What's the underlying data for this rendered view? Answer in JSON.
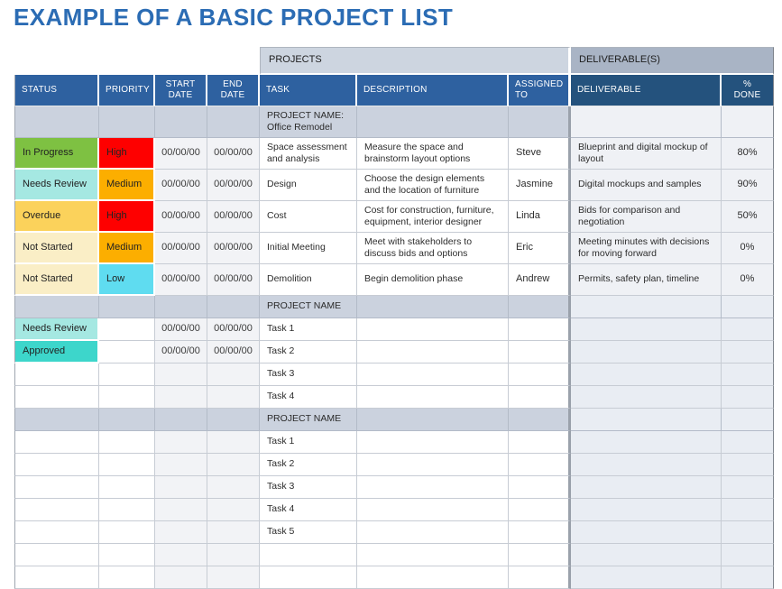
{
  "page_title": "EXAMPLE OF A BASIC PROJECT LIST",
  "colors": {
    "title_blue": "#2B6CB4",
    "header_blue_left": "#2E61A0",
    "header_blue_right": "#24527D",
    "band_projects_bg": "#CDD5E0",
    "band_deliverables_bg": "#A9B4C5",
    "project_name_row_bg": "#CBD2DE",
    "date_cell_bg": "#F2F3F6",
    "deliverable_cell_bg": "#E9EDF3",
    "in_progress": "#7EC142",
    "needs_review": "#A5E8E2",
    "overdue": "#FBD25B",
    "not_started": "#FAEEC6",
    "approved": "#3DD6CB",
    "high": "#FE0000",
    "medium": "#FCAE00",
    "low": "#5FDCF0"
  },
  "table": {
    "bands": [
      {
        "label": "PROJECTS"
      },
      {
        "label": "DELIVERABLE(S)"
      }
    ],
    "columns": [
      {
        "key": "status",
        "label": "STATUS"
      },
      {
        "key": "priority",
        "label": "PRIORITY"
      },
      {
        "key": "start-date",
        "label": "START DATE"
      },
      {
        "key": "end-date",
        "label": "END DATE"
      },
      {
        "key": "task",
        "label": "TASK"
      },
      {
        "key": "description",
        "label": "DESCRIPTION"
      },
      {
        "key": "assigned-to",
        "label": "ASSIGNED TO"
      },
      {
        "key": "deliverable",
        "label": "DELIVERABLE"
      },
      {
        "key": "pct-done",
        "label": "% DONE"
      }
    ],
    "rows": [
      {
        "kind": "project-header",
        "section": 1,
        "cells": [
          "",
          "",
          "",
          "",
          "PROJECT NAME:\nOffice Remodel",
          "",
          "",
          "",
          ""
        ]
      },
      {
        "kind": "task",
        "section": 1,
        "status_color": "in_progress",
        "priority_color": "high",
        "cells": [
          "In Progress",
          "High",
          "00/00/00",
          "00/00/00",
          "Space assessment and analysis",
          "Measure the space and brainstorm layout options",
          "Steve",
          "Blueprint and digital mockup of layout",
          "80%"
        ]
      },
      {
        "kind": "task",
        "section": 1,
        "status_color": "needs_review",
        "priority_color": "medium",
        "cells": [
          "Needs Review",
          "Medium",
          "00/00/00",
          "00/00/00",
          "Design",
          "Choose the design elements and the location of furniture",
          "Jasmine",
          "Digital mockups and samples",
          "90%"
        ]
      },
      {
        "kind": "task",
        "section": 1,
        "status_color": "overdue",
        "priority_color": "high",
        "cells": [
          "Overdue",
          "High",
          "00/00/00",
          "00/00/00",
          "Cost",
          "Cost for construction, furniture, equipment, interior designer",
          "Linda",
          "Bids for comparison and negotiation",
          "50%"
        ]
      },
      {
        "kind": "task",
        "section": 1,
        "status_color": "not_started",
        "priority_color": "medium",
        "cells": [
          "Not Started",
          "Medium",
          "00/00/00",
          "00/00/00",
          "Initial Meeting",
          "Meet with stakeholders to discuss bids and options",
          "Eric",
          "Meeting minutes with decisions for moving forward",
          "0%"
        ]
      },
      {
        "kind": "task",
        "section": 1,
        "status_color": "not_started",
        "priority_color": "low",
        "cells": [
          "Not Started",
          "Low",
          "00/00/00",
          "00/00/00",
          "Demolition",
          "Begin demolition phase",
          "Andrew",
          "Permits, safety plan, timeline",
          "0%"
        ]
      },
      {
        "kind": "project-header",
        "section": 2,
        "cells": [
          "",
          "",
          "",
          "",
          "PROJECT NAME",
          "",
          "",
          "",
          ""
        ]
      },
      {
        "kind": "task",
        "section": 2,
        "status_color": "needs_review",
        "cells": [
          "Needs Review",
          "",
          "00/00/00",
          "00/00/00",
          "Task 1",
          "",
          "",
          "",
          ""
        ]
      },
      {
        "kind": "task",
        "section": 2,
        "status_color": "approved",
        "cells": [
          "Approved",
          "",
          "00/00/00",
          "00/00/00",
          "Task 2",
          "",
          "",
          "",
          ""
        ]
      },
      {
        "kind": "task",
        "section": 2,
        "cells": [
          "",
          "",
          "",
          "",
          "Task 3",
          "",
          "",
          "",
          ""
        ]
      },
      {
        "kind": "task",
        "section": 2,
        "cells": [
          "",
          "",
          "",
          "",
          "Task 4",
          "",
          "",
          "",
          ""
        ]
      },
      {
        "kind": "project-header",
        "section": 3,
        "cells": [
          "",
          "",
          "",
          "",
          "PROJECT NAME",
          "",
          "",
          "",
          ""
        ]
      },
      {
        "kind": "task",
        "section": 3,
        "cells": [
          "",
          "",
          "",
          "",
          "Task 1",
          "",
          "",
          "",
          ""
        ]
      },
      {
        "kind": "task",
        "section": 3,
        "cells": [
          "",
          "",
          "",
          "",
          "Task 2",
          "",
          "",
          "",
          ""
        ]
      },
      {
        "kind": "task",
        "section": 3,
        "cells": [
          "",
          "",
          "",
          "",
          "Task 3",
          "",
          "",
          "",
          ""
        ]
      },
      {
        "kind": "task",
        "section": 3,
        "cells": [
          "",
          "",
          "",
          "",
          "Task 4",
          "",
          "",
          "",
          ""
        ]
      },
      {
        "kind": "task",
        "section": 3,
        "cells": [
          "",
          "",
          "",
          "",
          "Task 5",
          "",
          "",
          "",
          ""
        ]
      },
      {
        "kind": "empty",
        "section": 3,
        "cells": [
          "",
          "",
          "",
          "",
          "",
          "",
          "",
          "",
          ""
        ]
      },
      {
        "kind": "empty",
        "section": 3,
        "cells": [
          "",
          "",
          "",
          "",
          "",
          "",
          "",
          "",
          ""
        ]
      }
    ]
  }
}
